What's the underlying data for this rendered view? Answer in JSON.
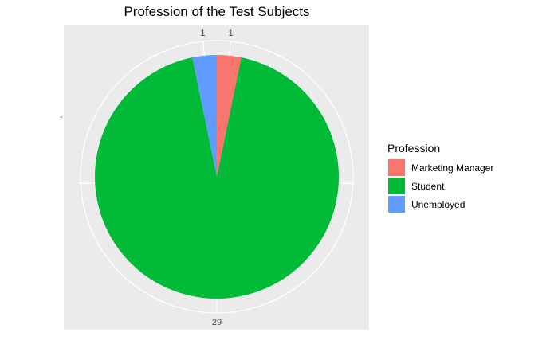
{
  "chart_data": {
    "type": "pie",
    "title": "Profession of the Test Subjects",
    "legend_title": "Profession",
    "legend_position": "right",
    "y_tick_label": "-",
    "slices": [
      {
        "label": "Marketing Manager",
        "value": 1,
        "color": "#F8766D"
      },
      {
        "label": "Student",
        "value": 29,
        "color": "#00BA38"
      },
      {
        "label": "Unemployed",
        "value": 1,
        "color": "#619CFF"
      }
    ]
  },
  "theme": {
    "panel_background": "#EBEBEB",
    "grid_color": "#FFFFFF"
  }
}
